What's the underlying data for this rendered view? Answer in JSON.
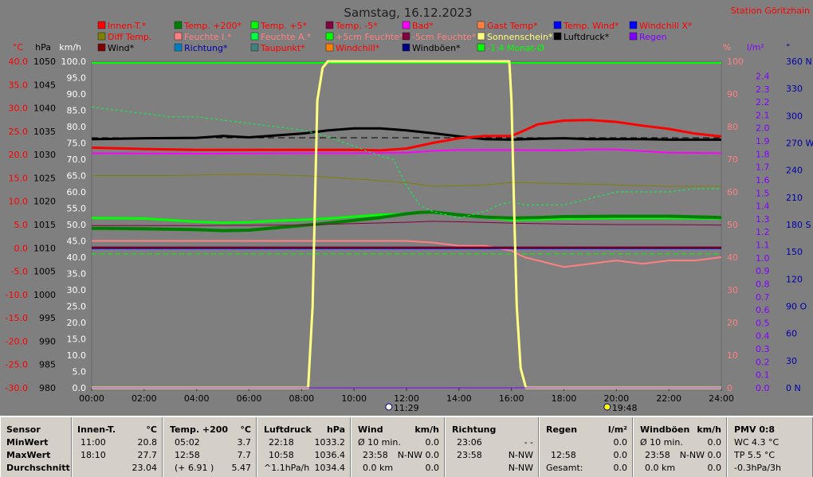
{
  "title": "Samstag, 16.12.2023",
  "station": "Station Göritzhain",
  "colors": {
    "bg": "#7f7f7f",
    "grid_green": "#00ff00",
    "zero_red": "#ff0000"
  },
  "left_axes": [
    {
      "unit": "°C",
      "color": "#ff0000",
      "ticks": [
        "40.0",
        "35.0",
        "30.0",
        "25.0",
        "20.0",
        "15.0",
        "10.0",
        "5.0",
        "0.0",
        "-5.0",
        "-10.0",
        "-15.0",
        "-20.0",
        "-25.0",
        "-30.0"
      ]
    },
    {
      "unit": "hPa",
      "color": "#000000",
      "ticks": [
        "1050",
        "1045",
        "1040",
        "1035",
        "1030",
        "1025",
        "1020",
        "1015",
        "1010",
        "1005",
        "1000",
        "995",
        "990",
        "985",
        "980"
      ]
    },
    {
      "unit": "km/h",
      "color": "#ffffff",
      "ticks": [
        "100.0",
        "95.0",
        "90.0",
        "85.0",
        "80.0",
        "75.0",
        "70.0",
        "65.0",
        "60.0",
        "55.0",
        "50.0",
        "45.0",
        "40.0",
        "35.0",
        "30.0",
        "25.0",
        "20.0",
        "15.0",
        "10.0",
        "5.0",
        "0.0"
      ]
    }
  ],
  "right_axes": [
    {
      "unit": "%",
      "color": "#ff8080",
      "ticks": [
        "100",
        "90",
        "80",
        "70",
        "60",
        "50",
        "40",
        "30",
        "20",
        "10",
        "0"
      ]
    },
    {
      "unit": "l/m²",
      "color": "#8000ff",
      "ticks": [
        "2.4",
        "2.3",
        "2.2",
        "2.1",
        "2.0",
        "1.9",
        "1.8",
        "1.7",
        "1.6",
        "1.5",
        "1.4",
        "1.3",
        "1.2",
        "1.1",
        "1.0",
        "0.9",
        "0.8",
        "0.7",
        "0.6",
        "0.5",
        "0.4",
        "0.3",
        "0.2",
        "0.1",
        "0.0"
      ]
    },
    {
      "unit": "°",
      "color": "#0000aa",
      "ticks": [
        "360 N",
        "330",
        "300",
        "270 W",
        "240",
        "210",
        "180 S",
        "150",
        "120",
        "90 O",
        "60",
        "30",
        "0   N"
      ]
    }
  ],
  "x_ticks": [
    "00:00",
    "02:00",
    "04:00",
    "06:00",
    "08:00",
    "10:00",
    "12:00",
    "14:00",
    "16:00",
    "18:00",
    "20:00",
    "22:00",
    "24:00"
  ],
  "sun_markers": [
    {
      "time": "11:29",
      "hour": 11.48
    },
    {
      "time": "19:48",
      "hour": 19.8
    }
  ],
  "legend": [
    {
      "label": "Innen-T.*",
      "color": "#ff0000",
      "text_color": "#ff0000"
    },
    {
      "label": "Temp. +200*",
      "color": "#008000",
      "text_color": "#ff0000"
    },
    {
      "label": "Temp. +5*",
      "color": "#00ff00",
      "text_color": "#ff0000"
    },
    {
      "label": "Temp. -5*",
      "color": "#800040",
      "text_color": "#ff0000"
    },
    {
      "label": "Bad*",
      "color": "#ff00ff",
      "text_color": "#ff0000"
    },
    {
      "label": "Gast Temp*",
      "color": "#ff8040",
      "text_color": "#ff0000"
    },
    {
      "label": "Temp. Wind*",
      "color": "#0000ff",
      "text_color": "#ff0000"
    },
    {
      "label": "Windchill X*",
      "color": "#0000ff",
      "text_color": "#ff0000"
    },
    {
      "label": "Diff Temp.",
      "color": "#808000",
      "text_color": "#ff0000"
    },
    {
      "label": "Feuchte I.*",
      "color": "#ff8080",
      "text_color": "#ff8080"
    },
    {
      "label": "Feuchte A.*",
      "color": "#00ff40",
      "text_color": "#ff8080"
    },
    {
      "label": "+5cm Feuchte*",
      "color": "#00ff00",
      "text_color": "#ff8080"
    },
    {
      "label": "-5cm Feuchte*",
      "color": "#800040",
      "text_color": "#ff8080"
    },
    {
      "label": "Sonnenschein*",
      "color": "#ffff80",
      "text_color": "#ffff80"
    },
    {
      "label": "Luftdruck*",
      "color": "#000000",
      "text_color": "#000000"
    },
    {
      "label": "Regen",
      "color": "#8000ff",
      "text_color": "#8000ff"
    },
    {
      "label": "Wind*",
      "color": "#800000",
      "text_color": "#000000"
    },
    {
      "label": "Richtung*",
      "color": "#0080c0",
      "text_color": "#0000aa"
    },
    {
      "label": "Taupunkt*",
      "color": "#408080",
      "text_color": "#ff0000"
    },
    {
      "label": "Windchill*",
      "color": "#ff8000",
      "text_color": "#ff0000"
    },
    {
      "label": "Windböen*",
      "color": "#000080",
      "text_color": "#000000"
    },
    {
      "label": "-1.4 Monat-Ø",
      "color": "#00ff00",
      "text_color": "#00ff00"
    }
  ],
  "chart_data": {
    "type": "line",
    "x_unit": "hour of day",
    "xlim": [
      0,
      24
    ],
    "series": [
      {
        "name": "Luftdruck*",
        "axis": "hPa",
        "color": "#000000",
        "width": 3,
        "x": [
          0,
          2,
          4,
          5,
          6,
          7,
          8,
          9,
          10,
          11,
          12,
          13,
          14,
          15,
          16,
          17,
          18,
          19,
          20,
          21,
          22,
          23,
          24
        ],
        "y": [
          1033.3,
          1033.5,
          1033.6,
          1034.0,
          1033.7,
          1034.1,
          1034.5,
          1035.2,
          1035.6,
          1035.6,
          1035.2,
          1034.6,
          1033.9,
          1033.3,
          1033.2,
          1033.4,
          1033.5,
          1033.3,
          1033.3,
          1033.3,
          1033.2,
          1033.2,
          1033.2
        ]
      },
      {
        "name": "Innen-T.*",
        "axis": "°C",
        "color": "#ff0000",
        "width": 3,
        "x": [
          0,
          2,
          4,
          6,
          8,
          10,
          11,
          12,
          13,
          14,
          15,
          16,
          16.5,
          17,
          18,
          19,
          20,
          21,
          22,
          23,
          24
        ],
        "y": [
          21.5,
          21.2,
          21.0,
          21.0,
          21.0,
          21.0,
          20.9,
          21.3,
          22.5,
          23.5,
          24.0,
          24.0,
          25.2,
          26.5,
          27.3,
          27.4,
          27.0,
          26.2,
          25.5,
          24.5,
          23.9
        ]
      },
      {
        "name": "Bad*",
        "axis": "°C",
        "color": "#ff00ff",
        "width": 2,
        "x": [
          0,
          4,
          8,
          10,
          12,
          13,
          14,
          16,
          18,
          19,
          20,
          22,
          24
        ],
        "y": [
          20.3,
          20.2,
          20.3,
          20.3,
          20.4,
          20.8,
          21.0,
          21.0,
          20.9,
          21.1,
          21.1,
          20.4,
          20.3
        ]
      },
      {
        "name": "Diff Temp.",
        "axis": "°C",
        "color": "#808000",
        "width": 1,
        "x": [
          0,
          3,
          6,
          8,
          10,
          12,
          13,
          15,
          16,
          18,
          20,
          22,
          24
        ],
        "y": [
          15.5,
          15.5,
          15.8,
          15.5,
          14.8,
          14.0,
          13.2,
          13.5,
          14.0,
          13.8,
          13.5,
          13.2,
          13.2
        ]
      },
      {
        "name": "Temp. +5*",
        "axis": "°C",
        "color": "#00ff00",
        "width": 3,
        "x": [
          0,
          2,
          4,
          5,
          6,
          7,
          8,
          9,
          10,
          11,
          12,
          12.5,
          13,
          14,
          15,
          16,
          17,
          18,
          20,
          22,
          24
        ],
        "y": [
          6.4,
          6.3,
          5.6,
          5.4,
          5.5,
          5.8,
          6.0,
          6.3,
          6.7,
          7.1,
          7.3,
          7.6,
          7.6,
          7.0,
          6.5,
          6.0,
          6.1,
          6.3,
          6.4,
          6.4,
          6.3
        ]
      },
      {
        "name": "Temp. +200*",
        "axis": "°C",
        "color": "#008000",
        "width": 4,
        "x": [
          0,
          2,
          4,
          5,
          6,
          7,
          8,
          9,
          10,
          11,
          12,
          12.5,
          13,
          14,
          15,
          16,
          17,
          18,
          20,
          22,
          24
        ],
        "y": [
          4.2,
          4.1,
          3.9,
          3.7,
          3.8,
          4.3,
          4.8,
          5.3,
          5.9,
          6.5,
          7.3,
          7.6,
          7.7,
          7.1,
          6.6,
          6.4,
          6.5,
          6.7,
          6.8,
          6.8,
          6.5
        ]
      },
      {
        "name": "Temp. -5*",
        "axis": "°C",
        "color": "#800040",
        "width": 1,
        "x": [
          0,
          4,
          8,
          10,
          12,
          13,
          14,
          16,
          18,
          20,
          22,
          24
        ],
        "y": [
          4.8,
          4.8,
          4.9,
          5.2,
          5.5,
          5.7,
          5.6,
          5.3,
          5.1,
          5.0,
          5.0,
          4.9
        ]
      },
      {
        "name": "Feuchte I.*",
        "axis": "%",
        "color": "#ff8080",
        "width": 2,
        "x": [
          0,
          2,
          4,
          6,
          8,
          10,
          12,
          13,
          14,
          15,
          16,
          16.5,
          17,
          18,
          19,
          20,
          21,
          22,
          23,
          24
        ],
        "y": [
          45,
          45,
          45,
          45,
          45,
          45,
          45,
          44.5,
          43.5,
          43.5,
          42,
          40,
          39,
          37,
          38,
          39,
          38,
          39,
          39,
          40
        ]
      },
      {
        "name": "Feuchte A.*",
        "axis": "%",
        "color": "#00ff40",
        "width": 1,
        "dash": "3,3",
        "x": [
          0,
          1,
          2,
          3,
          4,
          5,
          6,
          7,
          8,
          9,
          10,
          11,
          11.5,
          12,
          12.5,
          13,
          14,
          15,
          15.5,
          16,
          16.5,
          17,
          18,
          19,
          20,
          21,
          22,
          23,
          24
        ],
        "y": [
          86,
          85,
          84,
          83,
          83,
          82,
          81,
          80,
          79,
          77,
          74,
          71,
          70,
          62,
          56,
          54,
          52,
          54,
          56,
          57,
          56,
          56,
          56,
          58,
          60,
          60,
          60,
          61,
          61
        ]
      },
      {
        "name": "Windchill X*",
        "axis": "°C",
        "color": "#0000ff",
        "width": 3,
        "x": [
          0,
          24
        ],
        "y": [
          0,
          0
        ]
      },
      {
        "name": "Wind*",
        "axis": "km/h",
        "color": "#800000",
        "width": 2,
        "x": [
          0,
          24
        ],
        "y": [
          43,
          43
        ]
      },
      {
        "name": "Sonnenschein*",
        "axis": "%",
        "color": "#ffff80",
        "width": 3,
        "x": [
          0,
          8.25,
          8.42,
          8.6,
          8.8,
          9.0,
          9.2,
          15.92,
          16.0,
          16.1,
          16.2,
          16.35,
          16.55,
          24
        ],
        "y": [
          0,
          0,
          25,
          88,
          98,
          100,
          100,
          100,
          88,
          55,
          25,
          6,
          0,
          0
        ]
      },
      {
        "name": "Regen",
        "axis": "l/m²",
        "color": "#8000ff",
        "width": 1,
        "x": [
          0,
          24
        ],
        "y": [
          0,
          0
        ]
      }
    ],
    "reference_lines": [
      {
        "name": "-1.4 Monat-Ø",
        "axis": "km/h",
        "value": 41,
        "color": "#00ff00",
        "dash": "6,4"
      },
      {
        "name": "Luftdruck ref",
        "axis": "hPa",
        "value": 1033.6,
        "color": "#000000",
        "dash": "8,5"
      }
    ]
  },
  "stats": {
    "sensor": {
      "header": "Sensor",
      "labels": [
        "MinWert",
        "MaxWert",
        "Durchschnitt"
      ]
    },
    "innen": {
      "header": "Innen-T.",
      "unit": "°C",
      "min_time": "11:00",
      "min_val": "20.8",
      "max_time": "18:10",
      "max_val": "27.7",
      "avg": "23.04"
    },
    "temp200": {
      "header": "Temp. +200",
      "unit": "°C",
      "min_time": "05:02",
      "min_val": "3.7",
      "max_time": "12:58",
      "max_val": "7.7",
      "avg_note": "(+ 6.91 )",
      "avg": "5.47"
    },
    "luftdruck": {
      "header": "Luftdruck",
      "unit": "hPa",
      "min_time": "22:18",
      "min_val": "1033.2",
      "max_time": "10:58",
      "max_val": "1036.4",
      "trend": "^1.1hPa/h",
      "avg": "1034.4"
    },
    "wind": {
      "header": "Wind",
      "unit": "km/h",
      "r1_label": "Ø 10 min.",
      "r1_val": "0.0",
      "r2_time": "23:58",
      "r2_val": "N-NW 0.0",
      "r3_label": "0.0 km",
      "r3_val": "0.0"
    },
    "richtung": {
      "header": "Richtung",
      "r1_time": "23:06",
      "r1_val": "- -",
      "r2_time": "23:58",
      "r2_val": "N-NW",
      "r3_val": "N-NW"
    },
    "regen": {
      "header": "Regen",
      "unit": "l/m²",
      "r1_val": "0.0",
      "r2_time": "12:58",
      "r2_val": "0.0",
      "r3_label": "Gesamt:",
      "r3_val": "0.0"
    },
    "windboeen": {
      "header": "Windböen",
      "unit": "km/h",
      "r1_label": "Ø 10 min.",
      "r1_val": "0.0",
      "r2_time": "23:58",
      "r2_val": "N-NW 0.0",
      "r3_label": "0.0 km",
      "r3_val": "0.0"
    },
    "pmv": {
      "header": "PMV 0:8",
      "r1": "WC 4.3 °C",
      "r2": "TP 5.5 °C",
      "r3": "-0.3hPa/3h"
    }
  }
}
